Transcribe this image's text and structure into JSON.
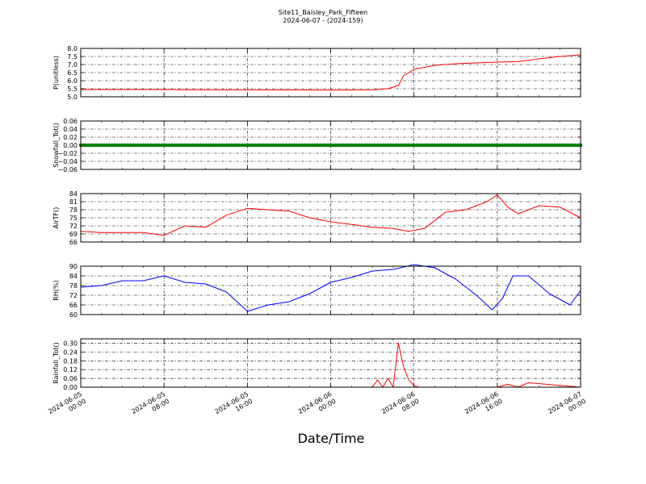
{
  "title": "Site11_Baisley_Park_Fifteen",
  "subtitle": "2024-06-07 - (2024-159)",
  "xlabel": "Date/Time",
  "x_ticks": [
    {
      "value": "2024-06-05T00:00",
      "line1": "2024-06-05",
      "line2": "00:00"
    },
    {
      "value": "2024-06-05T08:00",
      "line1": "2024-06-05",
      "line2": "08:00"
    },
    {
      "value": "2024-06-05T16:00",
      "line1": "2024-06-05",
      "line2": "16:00"
    },
    {
      "value": "2024-06-06T00:00",
      "line1": "2024-06-06",
      "line2": "00:00"
    },
    {
      "value": "2024-06-06T08:00",
      "line1": "2024-06-06",
      "line2": "08:00"
    },
    {
      "value": "2024-06-06T16:00",
      "line1": "2024-06-06",
      "line2": "16:00"
    },
    {
      "value": "2024-06-07T00:00",
      "line1": "2024-06-07",
      "line2": "00:00"
    }
  ],
  "chart_data": [
    {
      "type": "line",
      "ylabel": "P(unitless)",
      "ylim": [
        5.0,
        8.0
      ],
      "yticks": [
        "5.0",
        "5.5",
        "6.0",
        "6.5",
        "7.0",
        "7.5",
        "8.0"
      ],
      "grid": true,
      "color": "#ff0000",
      "x": [
        "2024-06-05T00:00",
        "2024-06-05T08:00",
        "2024-06-05T16:00",
        "2024-06-06T00:00",
        "2024-06-06T04:00",
        "2024-06-06T05:30",
        "2024-06-06T06:30",
        "2024-06-06T07:00",
        "2024-06-06T08:00",
        "2024-06-06T10:00",
        "2024-06-06T12:00",
        "2024-06-06T16:00",
        "2024-06-06T18:00",
        "2024-06-06T20:00",
        "2024-06-06T22:00",
        "2024-06-07T00:00"
      ],
      "y": [
        5.45,
        5.45,
        5.43,
        5.42,
        5.43,
        5.5,
        5.7,
        6.3,
        6.7,
        6.95,
        7.05,
        7.15,
        7.18,
        7.35,
        7.5,
        7.6
      ]
    },
    {
      "type": "scatter",
      "ylabel": "Snowfall_Tot()",
      "ylim": [
        -0.06,
        0.06
      ],
      "yticks": [
        "−0.06",
        "−0.04",
        "−0.02",
        "0.00",
        "0.02",
        "0.04",
        "0.06"
      ],
      "grid": true,
      "color": "#008000",
      "x": [
        "2024-06-05T00:00",
        "2024-06-07T00:00"
      ],
      "y": [
        0.0,
        0.0
      ],
      "note_constant": 0.0
    },
    {
      "type": "line",
      "ylabel": "AirTF()",
      "ylim": [
        66,
        84
      ],
      "yticks": [
        "66",
        "69",
        "72",
        "75",
        "78",
        "81",
        "84"
      ],
      "grid": true,
      "color": "#ff0000",
      "x": [
        "2024-06-05T00:00",
        "2024-06-05T02:00",
        "2024-06-05T04:00",
        "2024-06-05T06:00",
        "2024-06-05T08:00",
        "2024-06-05T10:00",
        "2024-06-05T12:00",
        "2024-06-05T14:00",
        "2024-06-05T16:00",
        "2024-06-05T18:00",
        "2024-06-05T20:00",
        "2024-06-05T22:00",
        "2024-06-06T00:00",
        "2024-06-06T02:00",
        "2024-06-06T04:00",
        "2024-06-06T06:00",
        "2024-06-06T07:30",
        "2024-06-06T09:00",
        "2024-06-06T11:00",
        "2024-06-06T13:00",
        "2024-06-06T15:00",
        "2024-06-06T16:00",
        "2024-06-06T17:00",
        "2024-06-06T18:00",
        "2024-06-06T20:00",
        "2024-06-06T22:00",
        "2024-06-07T00:00"
      ],
      "y": [
        70,
        69.5,
        69.5,
        69.5,
        68.5,
        72,
        71.5,
        76,
        78.5,
        78,
        77.5,
        75,
        73.5,
        72.5,
        71.5,
        71,
        70,
        71,
        77,
        78,
        81,
        83.5,
        79,
        76.5,
        79.5,
        79,
        75
      ]
    },
    {
      "type": "line",
      "ylabel": "RH(%)",
      "ylim": [
        60,
        90
      ],
      "yticks": [
        "60",
        "66",
        "72",
        "78",
        "84",
        "90"
      ],
      "grid": true,
      "color": "#0000ff",
      "x": [
        "2024-06-05T00:00",
        "2024-06-05T02:00",
        "2024-06-05T04:00",
        "2024-06-05T06:00",
        "2024-06-05T08:00",
        "2024-06-05T10:00",
        "2024-06-05T12:00",
        "2024-06-05T14:00",
        "2024-06-05T16:00",
        "2024-06-05T18:00",
        "2024-06-05T20:00",
        "2024-06-05T22:00",
        "2024-06-06T00:00",
        "2024-06-06T02:00",
        "2024-06-06T04:00",
        "2024-06-06T06:00",
        "2024-06-06T08:00",
        "2024-06-06T10:00",
        "2024-06-06T12:00",
        "2024-06-06T14:00",
        "2024-06-06T15:30",
        "2024-06-06T16:30",
        "2024-06-06T17:30",
        "2024-06-06T19:00",
        "2024-06-06T21:00",
        "2024-06-06T23:00",
        "2024-06-07T00:00"
      ],
      "y": [
        77,
        78,
        81,
        81,
        84,
        80,
        79,
        74,
        62,
        66,
        68,
        73,
        80,
        83,
        87,
        88,
        91,
        89,
        82,
        72,
        63,
        70,
        84,
        84,
        73,
        66,
        75
      ]
    },
    {
      "type": "line",
      "ylabel": "Rainfall_Tot()",
      "ylim": [
        0.0,
        0.33
      ],
      "yticks": [
        "0.00",
        "0.06",
        "0.12",
        "0.18",
        "0.24",
        "0.30"
      ],
      "grid": true,
      "color": "#ff0000",
      "x": [
        "2024-06-05T00:00",
        "2024-06-06T04:00",
        "2024-06-06T04:30",
        "2024-06-06T05:00",
        "2024-06-06T05:30",
        "2024-06-06T06:00",
        "2024-06-06T06:30",
        "2024-06-06T07:00",
        "2024-06-06T07:30",
        "2024-06-06T08:00",
        "2024-06-06T08:30",
        "2024-06-06T16:00",
        "2024-06-06T17:00",
        "2024-06-06T18:00",
        "2024-06-06T19:00",
        "2024-06-07T00:00"
      ],
      "y": [
        0,
        0,
        0.05,
        0.0,
        0.06,
        0.0,
        0.3,
        0.14,
        0.05,
        0.01,
        0,
        0,
        0.02,
        0,
        0.03,
        0
      ]
    }
  ]
}
